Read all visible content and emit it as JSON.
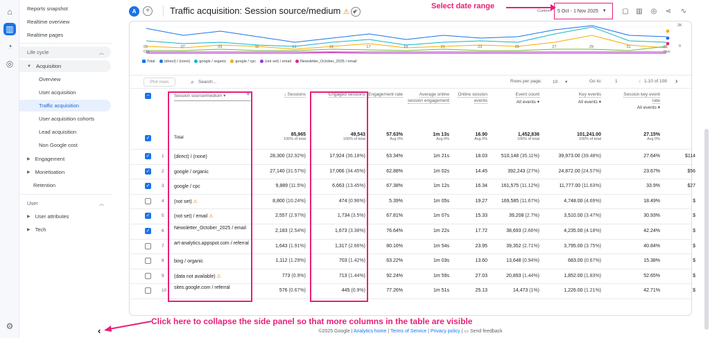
{
  "rail": {
    "icons": [
      "home-icon",
      "reports-icon",
      "explore-icon",
      "advertising-icon",
      "settings-icon"
    ]
  },
  "sidebar": {
    "top_items": [
      "Reports snapshot",
      "Realtime overview",
      "Realtime pages"
    ],
    "lifecycle_label": "Life cycle",
    "acquisition_label": "Acquisition",
    "acquisition_items": [
      "Overview",
      "User acquisition",
      "Traffic acquisition",
      "User acquisition cohorts",
      "Lead acquisition",
      "Non Google cost"
    ],
    "engagement_label": "Engagement",
    "monetisation_label": "Monetisation",
    "retention_label": "Retention",
    "user_label": "User",
    "user_attributes_label": "User attributes",
    "tech_label": "Tech",
    "collapse_glyph": "‹"
  },
  "header": {
    "avatar_letter": "A",
    "title": "Traffic acquisition: Session source/medium",
    "date_prefix": "Custom",
    "date_range": "5 Oct - 1 Nov 2025"
  },
  "annotations": {
    "date": "Select date range",
    "collapse": "Click here to collapse the side panel so that more columns in the table are visible"
  },
  "chart": {
    "x_ticks": [
      "05\nOct",
      "07",
      "09",
      "11",
      "13",
      "15",
      "17",
      "19",
      "21",
      "23",
      "25",
      "27",
      "29",
      "31",
      "01\nNov"
    ],
    "y_ticks": [
      "2K",
      "0"
    ],
    "legend": [
      "Total",
      "(direct) / (none)",
      "google / organic",
      "google / cpc",
      "(not set) / email",
      "Newsletter_October_2025 / email"
    ]
  },
  "chart_data": {
    "type": "line",
    "x": [
      "05 Oct",
      "07",
      "09",
      "11",
      "13",
      "15",
      "17",
      "19",
      "21",
      "23",
      "25",
      "27",
      "29",
      "31",
      "01 Nov"
    ],
    "y_ticks": [
      "2K",
      "0"
    ]
  },
  "toolbar": {
    "plot_rows": "Plot rows",
    "search_placeholder": "Search...",
    "rows_per_page_label": "Rows per page:",
    "rows_per_page": "10",
    "goto_label": "Go to:",
    "goto_value": "1",
    "pagination": "1-10 of 109"
  },
  "table": {
    "dimension_header": "Session source/medium",
    "columns": [
      {
        "h": "Sessions",
        "sub": ""
      },
      {
        "h": "Engaged sessions",
        "sub": ""
      },
      {
        "h": "Engagement rate",
        "sub": ""
      },
      {
        "h": "Average online session engagement",
        "sub": ""
      },
      {
        "h": "Online session events",
        "sub": ""
      },
      {
        "h": "Event count",
        "sub": "All events"
      },
      {
        "h": "Key events",
        "sub": "All events"
      },
      {
        "h": "Session key event rate",
        "sub": "All events"
      }
    ],
    "total_label": "Total",
    "totals": [
      [
        "85,965",
        "100% of total"
      ],
      [
        "49,543",
        "100% of total"
      ],
      [
        "57.63%",
        "Avg 0%"
      ],
      [
        "1m 13s",
        "Avg 0%"
      ],
      [
        "16.90",
        "Avg 0%"
      ],
      [
        "1,452,836",
        "100% of total"
      ],
      [
        "101,241.00",
        "100% of total"
      ],
      [
        "27.15%",
        "Avg 0%"
      ]
    ],
    "rows": [
      {
        "n": "1",
        "name": "(direct) / (none)",
        "warn": false,
        "checked": true,
        "v": [
          "28,300 (32.92%)",
          "17,924 (36.18%)",
          "63.34%",
          "1m 21s",
          "18.03",
          "510,148 (35.11%)",
          "39,973.00 (39.48%)",
          "27.64%",
          "$114"
        ]
      },
      {
        "n": "2",
        "name": "google / organic",
        "warn": false,
        "checked": true,
        "v": [
          "27,140 (31.57%)",
          "17,066 (34.45%)",
          "62.88%",
          "1m 02s",
          "14.45",
          "392,243 (27%)",
          "24,872.00 (24.57%)",
          "23.67%",
          "$56"
        ]
      },
      {
        "n": "3",
        "name": "google / cpc",
        "warn": false,
        "checked": true,
        "v": [
          "9,889 (11.5%)",
          "6,663 (13.45%)",
          "67.38%",
          "1m 12s",
          "16.34",
          "161,575 (11.12%)",
          "11,777.00 (11.63%)",
          "33.9%",
          "$27"
        ]
      },
      {
        "n": "4",
        "name": "(not set)",
        "warn": true,
        "checked": false,
        "v": [
          "8,800 (10.24%)",
          "474 (0.96%)",
          "5.39%",
          "1m 05s",
          "19.27",
          "169,585 (11.67%)",
          "4,748.00 (4.69%)",
          "18.49%",
          "$"
        ]
      },
      {
        "n": "5",
        "name": "(not set) / email",
        "warn": true,
        "checked": true,
        "v": [
          "2,557 (2.97%)",
          "1,734 (3.5%)",
          "67.81%",
          "1m 07s",
          "15.33",
          "39,208 (2.7%)",
          "3,510.00 (3.47%)",
          "30.93%",
          "$"
        ]
      },
      {
        "n": "6",
        "name": "Newsletter_October_2025 / email",
        "warn": false,
        "checked": true,
        "v": [
          "2,183 (2.54%)",
          "1,673 (3.38%)",
          "76.64%",
          "1m 22s",
          "17.72",
          "38,693 (2.66%)",
          "4,235.00 (4.18%)",
          "42.24%",
          "$"
        ]
      },
      {
        "n": "7",
        "name": "art-analytics.appspot.com / referral",
        "warn": false,
        "checked": false,
        "v": [
          "1,643 (1.91%)",
          "1,317 (2.66%)",
          "80.16%",
          "1m 54s",
          "23.95",
          "39,352 (2.71%)",
          "3,795.00 (3.75%)",
          "40.84%",
          "$"
        ]
      },
      {
        "n": "8",
        "name": "bing / organic",
        "warn": false,
        "checked": false,
        "v": [
          "1,112 (1.29%)",
          "703 (1.42%)",
          "63.22%",
          "1m 03s",
          "13.60",
          "13,648 (0.94%)",
          "683.00 (0.67%)",
          "15.38%",
          "$"
        ]
      },
      {
        "n": "9",
        "name": "(data not available)",
        "warn": true,
        "checked": false,
        "v": [
          "773 (0.9%)",
          "713 (1.44%)",
          "92.24%",
          "1m 59s",
          "27.03",
          "20,893 (1.44%)",
          "1,852.00 (1.83%)",
          "52.65%",
          "$"
        ]
      },
      {
        "n": "10",
        "name": "sites.google.com / referral",
        "warn": false,
        "checked": false,
        "v": [
          "576 (0.67%)",
          "445 (0.9%)",
          "77.26%",
          "1m 51s",
          "25.13",
          "14,473 (1%)",
          "1,226.00 (1.21%)",
          "42.71%",
          "$"
        ]
      }
    ]
  },
  "footer": {
    "copyright": "©2025 Google",
    "links": [
      "Analytics home",
      "Terms of Service",
      "Privacy policy"
    ],
    "feedback": "Send feedback"
  }
}
